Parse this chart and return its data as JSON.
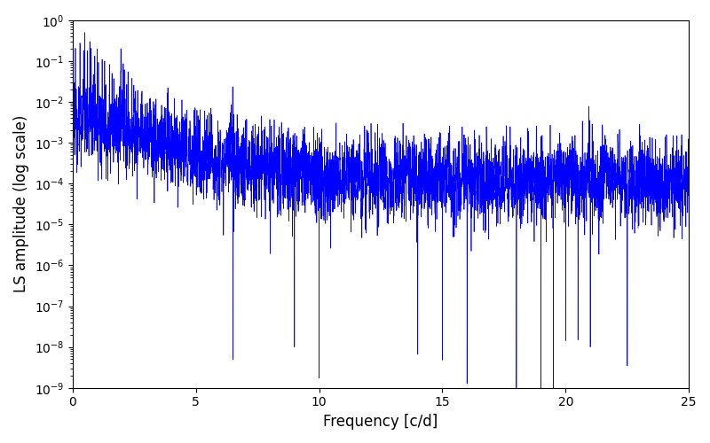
{
  "title": "",
  "xlabel": "Frequency [c/d]",
  "ylabel": "LS amplitude (log scale)",
  "xlim": [
    0,
    25
  ],
  "ylim": [
    1e-09,
    1.0
  ],
  "line_color": "#0000ff",
  "line_width": 0.5,
  "background_color": "#ffffff",
  "figsize": [
    8.0,
    5.0
  ],
  "dpi": 100,
  "seed": 12345,
  "n_points": 5000,
  "freq_max": 25.0
}
